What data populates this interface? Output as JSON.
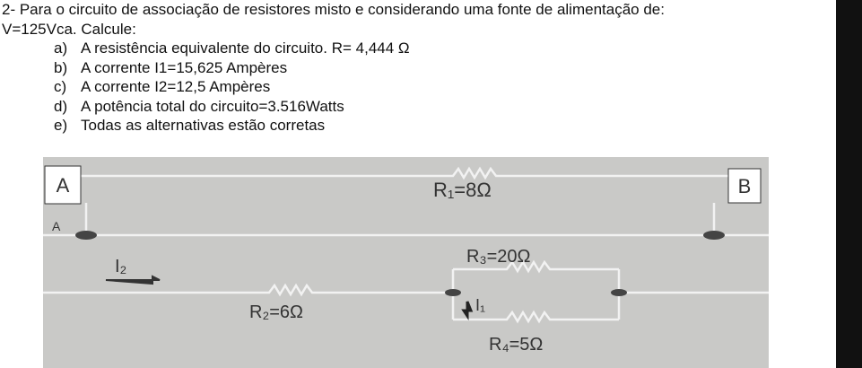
{
  "question": {
    "title": "2- Para o circuito de associação de resistores misto e considerando uma fonte de alimentação de:",
    "subtitle": "V=125Vca. Calcule:",
    "options": [
      {
        "letter": "a)",
        "text": "A resistência equivalente do circuito. R= 4,444 Ω"
      },
      {
        "letter": "b)",
        "text": "A corrente I1=15,625 Ampères"
      },
      {
        "letter": "c)",
        "text": "A corrente I2=12,5 Ampères"
      },
      {
        "letter": "d)",
        "text": "A potência total do circuito=3.516Watts"
      },
      {
        "letter": "e)",
        "text": "Todas as alternativas estão corretas"
      }
    ]
  },
  "circuit": {
    "node_a": "A",
    "node_b": "B",
    "small_a": "A",
    "r1": "R₁=8Ω",
    "r2": "R₂=6Ω",
    "r3": "R₃=20Ω",
    "r4": "R₄=5Ω",
    "i1": "I₁",
    "i2": "I₂"
  }
}
